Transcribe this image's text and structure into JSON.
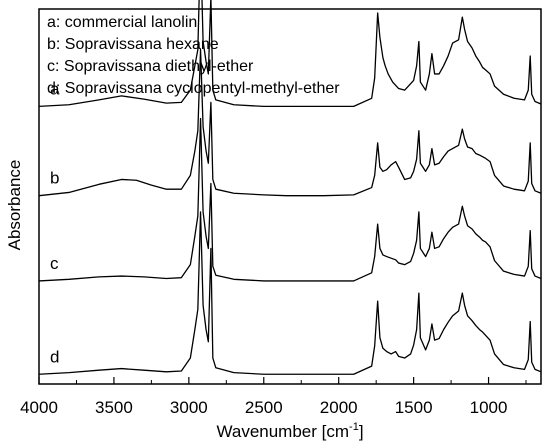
{
  "chart_data": {
    "type": "line",
    "xlabel": "Wavenumber [cm",
    "xlabel_sup": "-1",
    "xlabel_end": "]",
    "ylabel": "Absorbance",
    "xlim": [
      4000,
      650
    ],
    "x_reversed": true,
    "y_ticks_shown": false,
    "x_ticks": [
      4000,
      3500,
      3000,
      2500,
      2000,
      1500,
      1000
    ],
    "x_tick_labels": [
      "4000",
      "3500",
      "3000",
      "2500",
      "2000",
      "1500",
      "1000"
    ],
    "legend": {
      "placement": "top-left",
      "entries": [
        "a: commercial lanolin",
        "b: Sopravissana hexane",
        "c: Sopravissana diethyl-ether",
        "d: Sopravissana cyclopentyl-methyl-ether"
      ]
    },
    "series_style": "stacked, offset vertically, relative absorbance",
    "series": [
      {
        "name": "a",
        "offset": 3.3,
        "points": [
          [
            4000,
            0.0
          ],
          [
            3800,
            0.02
          ],
          [
            3600,
            0.08
          ],
          [
            3450,
            0.13
          ],
          [
            3300,
            0.09
          ],
          [
            3150,
            0.04
          ],
          [
            3050,
            0.05
          ],
          [
            2990,
            0.2
          ],
          [
            2960,
            0.5
          ],
          [
            2940,
            0.7
          ],
          [
            2922,
            2.0
          ],
          [
            2905,
            0.8
          ],
          [
            2885,
            0.55
          ],
          [
            2870,
            0.4
          ],
          [
            2853,
            1.35
          ],
          [
            2840,
            0.2
          ],
          [
            2820,
            0.08
          ],
          [
            2700,
            0.02
          ],
          [
            2500,
            0.0
          ],
          [
            2350,
            0.0
          ],
          [
            2100,
            0.0
          ],
          [
            1900,
            0.0
          ],
          [
            1780,
            0.1
          ],
          [
            1760,
            0.35
          ],
          [
            1740,
            1.15
          ],
          [
            1725,
            0.85
          ],
          [
            1705,
            0.6
          ],
          [
            1690,
            0.5
          ],
          [
            1670,
            0.4
          ],
          [
            1640,
            0.3
          ],
          [
            1600,
            0.22
          ],
          [
            1560,
            0.2
          ],
          [
            1500,
            0.32
          ],
          [
            1480,
            0.5
          ],
          [
            1465,
            0.8
          ],
          [
            1455,
            0.3
          ],
          [
            1420,
            0.2
          ],
          [
            1395,
            0.4
          ],
          [
            1378,
            0.65
          ],
          [
            1360,
            0.4
          ],
          [
            1330,
            0.4
          ],
          [
            1300,
            0.5
          ],
          [
            1270,
            0.62
          ],
          [
            1240,
            0.78
          ],
          [
            1200,
            0.82
          ],
          [
            1175,
            1.1
          ],
          [
            1160,
            0.95
          ],
          [
            1140,
            0.8
          ],
          [
            1110,
            0.72
          ],
          [
            1085,
            0.62
          ],
          [
            1060,
            0.55
          ],
          [
            1040,
            0.48
          ],
          [
            1020,
            0.45
          ],
          [
            990,
            0.4
          ],
          [
            960,
            0.25
          ],
          [
            900,
            0.15
          ],
          [
            830,
            0.1
          ],
          [
            760,
            0.08
          ],
          [
            735,
            0.2
          ],
          [
            722,
            0.62
          ],
          [
            712,
            0.15
          ],
          [
            690,
            0.06
          ],
          [
            650,
            0.03
          ]
        ]
      },
      {
        "name": "b",
        "offset": 2.2,
        "points": [
          [
            4000,
            0.0
          ],
          [
            3800,
            0.04
          ],
          [
            3600,
            0.14
          ],
          [
            3450,
            0.2
          ],
          [
            3350,
            0.19
          ],
          [
            3250,
            0.13
          ],
          [
            3150,
            0.08
          ],
          [
            3050,
            0.08
          ],
          [
            2990,
            0.25
          ],
          [
            2960,
            0.55
          ],
          [
            2940,
            0.8
          ],
          [
            2922,
            1.8
          ],
          [
            2905,
            0.85
          ],
          [
            2885,
            0.55
          ],
          [
            2870,
            0.4
          ],
          [
            2853,
            1.15
          ],
          [
            2840,
            0.2
          ],
          [
            2820,
            0.08
          ],
          [
            2700,
            0.03
          ],
          [
            2500,
            0.01
          ],
          [
            2350,
            0.0
          ],
          [
            2100,
            0.0
          ],
          [
            1900,
            0.01
          ],
          [
            1780,
            0.1
          ],
          [
            1760,
            0.25
          ],
          [
            1740,
            0.65
          ],
          [
            1725,
            0.35
          ],
          [
            1705,
            0.3
          ],
          [
            1680,
            0.32
          ],
          [
            1650,
            0.38
          ],
          [
            1620,
            0.42
          ],
          [
            1600,
            0.35
          ],
          [
            1560,
            0.2
          ],
          [
            1520,
            0.22
          ],
          [
            1500,
            0.3
          ],
          [
            1480,
            0.45
          ],
          [
            1465,
            0.8
          ],
          [
            1455,
            0.4
          ],
          [
            1420,
            0.3
          ],
          [
            1395,
            0.38
          ],
          [
            1378,
            0.58
          ],
          [
            1360,
            0.38
          ],
          [
            1330,
            0.4
          ],
          [
            1300,
            0.48
          ],
          [
            1270,
            0.55
          ],
          [
            1240,
            0.58
          ],
          [
            1200,
            0.62
          ],
          [
            1175,
            0.82
          ],
          [
            1160,
            0.7
          ],
          [
            1140,
            0.6
          ],
          [
            1110,
            0.58
          ],
          [
            1085,
            0.52
          ],
          [
            1060,
            0.5
          ],
          [
            1040,
            0.48
          ],
          [
            1020,
            0.46
          ],
          [
            990,
            0.42
          ],
          [
            960,
            0.25
          ],
          [
            900,
            0.12
          ],
          [
            830,
            0.08
          ],
          [
            760,
            0.06
          ],
          [
            735,
            0.18
          ],
          [
            722,
            0.65
          ],
          [
            712,
            0.15
          ],
          [
            690,
            0.06
          ],
          [
            650,
            0.03
          ]
        ]
      },
      {
        "name": "c",
        "offset": 1.15,
        "points": [
          [
            4000,
            0.0
          ],
          [
            3800,
            0.02
          ],
          [
            3600,
            0.05
          ],
          [
            3450,
            0.06
          ],
          [
            3300,
            0.05
          ],
          [
            3150,
            0.03
          ],
          [
            3050,
            0.04
          ],
          [
            2990,
            0.2
          ],
          [
            2960,
            0.55
          ],
          [
            2940,
            0.8
          ],
          [
            2922,
            2.0
          ],
          [
            2905,
            0.85
          ],
          [
            2885,
            0.55
          ],
          [
            2870,
            0.4
          ],
          [
            2853,
            1.2
          ],
          [
            2840,
            0.18
          ],
          [
            2820,
            0.07
          ],
          [
            2700,
            0.02
          ],
          [
            2500,
            0.0
          ],
          [
            2350,
            0.0
          ],
          [
            2100,
            0.0
          ],
          [
            1900,
            0.0
          ],
          [
            1780,
            0.1
          ],
          [
            1760,
            0.3
          ],
          [
            1740,
            0.7
          ],
          [
            1725,
            0.4
          ],
          [
            1705,
            0.32
          ],
          [
            1680,
            0.3
          ],
          [
            1650,
            0.28
          ],
          [
            1620,
            0.26
          ],
          [
            1600,
            0.22
          ],
          [
            1560,
            0.2
          ],
          [
            1520,
            0.24
          ],
          [
            1500,
            0.34
          ],
          [
            1480,
            0.5
          ],
          [
            1465,
            0.85
          ],
          [
            1455,
            0.4
          ],
          [
            1420,
            0.3
          ],
          [
            1395,
            0.4
          ],
          [
            1378,
            0.6
          ],
          [
            1360,
            0.4
          ],
          [
            1330,
            0.42
          ],
          [
            1300,
            0.52
          ],
          [
            1270,
            0.6
          ],
          [
            1240,
            0.66
          ],
          [
            1200,
            0.7
          ],
          [
            1175,
            0.92
          ],
          [
            1160,
            0.8
          ],
          [
            1140,
            0.68
          ],
          [
            1110,
            0.64
          ],
          [
            1085,
            0.58
          ],
          [
            1060,
            0.54
          ],
          [
            1040,
            0.5
          ],
          [
            1020,
            0.48
          ],
          [
            990,
            0.42
          ],
          [
            960,
            0.25
          ],
          [
            900,
            0.12
          ],
          [
            830,
            0.08
          ],
          [
            760,
            0.06
          ],
          [
            735,
            0.18
          ],
          [
            722,
            0.62
          ],
          [
            712,
            0.15
          ],
          [
            690,
            0.06
          ],
          [
            650,
            0.03
          ]
        ]
      },
      {
        "name": "d",
        "offset": 0.0,
        "points": [
          [
            4000,
            0.0
          ],
          [
            3800,
            0.02
          ],
          [
            3600,
            0.05
          ],
          [
            3450,
            0.07
          ],
          [
            3300,
            0.05
          ],
          [
            3150,
            0.03
          ],
          [
            3050,
            0.04
          ],
          [
            2990,
            0.2
          ],
          [
            2960,
            0.55
          ],
          [
            2940,
            0.8
          ],
          [
            2922,
            2.0
          ],
          [
            2905,
            0.85
          ],
          [
            2885,
            0.55
          ],
          [
            2870,
            0.4
          ],
          [
            2853,
            1.55
          ],
          [
            2840,
            0.2
          ],
          [
            2820,
            0.08
          ],
          [
            2700,
            0.02
          ],
          [
            2500,
            0.0
          ],
          [
            2350,
            0.0
          ],
          [
            2100,
            0.0
          ],
          [
            1900,
            0.0
          ],
          [
            1780,
            0.1
          ],
          [
            1760,
            0.35
          ],
          [
            1740,
            0.9
          ],
          [
            1725,
            0.45
          ],
          [
            1705,
            0.32
          ],
          [
            1680,
            0.28
          ],
          [
            1650,
            0.25
          ],
          [
            1620,
            0.28
          ],
          [
            1600,
            0.22
          ],
          [
            1560,
            0.2
          ],
          [
            1520,
            0.25
          ],
          [
            1500,
            0.36
          ],
          [
            1480,
            0.55
          ],
          [
            1465,
            1.0
          ],
          [
            1455,
            0.45
          ],
          [
            1420,
            0.3
          ],
          [
            1395,
            0.42
          ],
          [
            1378,
            0.62
          ],
          [
            1360,
            0.42
          ],
          [
            1330,
            0.44
          ],
          [
            1300,
            0.55
          ],
          [
            1270,
            0.64
          ],
          [
            1240,
            0.72
          ],
          [
            1200,
            0.78
          ],
          [
            1175,
            1.0
          ],
          [
            1160,
            0.85
          ],
          [
            1140,
            0.72
          ],
          [
            1110,
            0.66
          ],
          [
            1085,
            0.6
          ],
          [
            1060,
            0.55
          ],
          [
            1040,
            0.52
          ],
          [
            1020,
            0.48
          ],
          [
            990,
            0.42
          ],
          [
            960,
            0.25
          ],
          [
            900,
            0.12
          ],
          [
            830,
            0.08
          ],
          [
            760,
            0.06
          ],
          [
            735,
            0.18
          ],
          [
            722,
            0.65
          ],
          [
            712,
            0.15
          ],
          [
            690,
            0.06
          ],
          [
            650,
            0.03
          ]
        ]
      }
    ]
  }
}
